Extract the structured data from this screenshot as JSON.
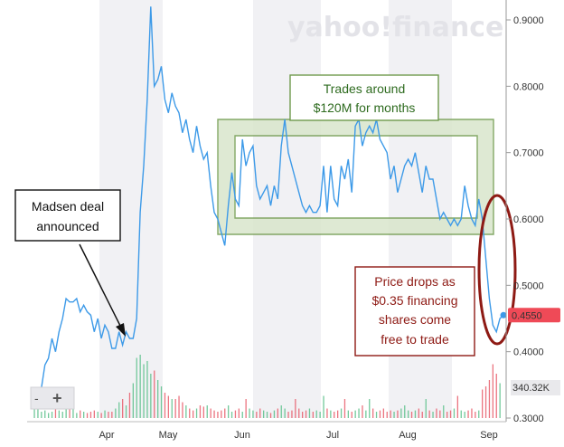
{
  "watermark": "yahoo!finance",
  "colors": {
    "line": "#3d9ae8",
    "volume_up": "#5bc08a",
    "volume_down": "#e85c6a",
    "band": "#f1f1f4",
    "green_box": "#6f9a4c",
    "green_box_fill": "#d9e6cc",
    "red_oval": "#8e1a14",
    "badge": "#ef4a57"
  },
  "chart_data": {
    "type": "line",
    "title": "",
    "xlabel": "",
    "ylabel": "",
    "x_tick_labels": [
      "Apr",
      "May",
      "Jun",
      "Jul",
      "Aug",
      "Sep"
    ],
    "y_tick_labels": [
      "0.9000",
      "0.8000",
      "0.7000",
      "0.6000",
      "0.5000",
      "0.4000",
      "0.3000"
    ],
    "ylim": [
      0.3,
      0.92
    ],
    "grid": "vertical month bands",
    "series": [
      {
        "values": [
          0.315,
          0.33,
          0.345,
          0.38,
          0.39,
          0.42,
          0.4,
          0.43,
          0.45,
          0.48,
          0.475,
          0.475,
          0.48,
          0.46,
          0.47,
          0.46,
          0.455,
          0.43,
          0.45,
          0.42,
          0.44,
          0.43,
          0.405,
          0.405,
          0.43,
          0.41,
          0.43,
          0.42,
          0.42,
          0.45,
          0.61,
          0.68,
          0.78,
          0.92,
          0.8,
          0.81,
          0.83,
          0.78,
          0.76,
          0.79,
          0.77,
          0.76,
          0.73,
          0.75,
          0.72,
          0.7,
          0.74,
          0.71,
          0.69,
          0.7,
          0.65,
          0.61,
          0.6,
          0.58,
          0.56,
          0.62,
          0.67,
          0.63,
          0.62,
          0.72,
          0.68,
          0.7,
          0.71,
          0.65,
          0.63,
          0.64,
          0.65,
          0.62,
          0.65,
          0.63,
          0.71,
          0.75,
          0.7,
          0.68,
          0.66,
          0.64,
          0.62,
          0.61,
          0.62,
          0.61,
          0.61,
          0.62,
          0.68,
          0.61,
          0.68,
          0.63,
          0.62,
          0.68,
          0.66,
          0.69,
          0.64,
          0.74,
          0.75,
          0.71,
          0.73,
          0.74,
          0.73,
          0.75,
          0.72,
          0.71,
          0.7,
          0.66,
          0.68,
          0.64,
          0.66,
          0.68,
          0.69,
          0.68,
          0.7,
          0.67,
          0.64,
          0.68,
          0.66,
          0.66,
          0.63,
          0.6,
          0.61,
          0.6,
          0.59,
          0.6,
          0.59,
          0.6,
          0.65,
          0.62,
          0.6,
          0.59,
          0.63,
          0.6,
          0.54,
          0.48,
          0.44,
          0.43,
          0.45,
          0.455
        ]
      }
    ],
    "volume_bars": [
      0.3,
      0.15,
      0.1,
      0.12,
      0.08,
      0.1,
      0.15,
      0.12,
      0.1,
      0.18,
      0.2,
      0.15,
      0.08,
      0.12,
      0.1,
      0.08,
      0.1,
      0.12,
      0.1,
      0.08,
      0.12,
      0.1,
      0.1,
      0.15,
      0.25,
      0.3,
      0.2,
      0.4,
      0.55,
      0.95,
      1.0,
      0.85,
      0.9,
      0.7,
      0.75,
      0.6,
      0.5,
      0.4,
      0.35,
      0.3,
      0.3,
      0.35,
      0.25,
      0.2,
      0.15,
      0.12,
      0.15,
      0.2,
      0.18,
      0.2,
      0.15,
      0.12,
      0.1,
      0.12,
      0.15,
      0.2,
      0.1,
      0.12,
      0.15,
      0.1,
      0.3,
      0.15,
      0.12,
      0.1,
      0.15,
      0.12,
      0.1,
      0.08,
      0.12,
      0.15,
      0.2,
      0.15,
      0.1,
      0.12,
      0.3,
      0.15,
      0.1,
      0.12,
      0.15,
      0.1,
      0.12,
      0.1,
      0.35,
      0.15,
      0.12,
      0.1,
      0.12,
      0.15,
      0.3,
      0.12,
      0.1,
      0.12,
      0.15,
      0.2,
      0.12,
      0.3,
      0.15,
      0.1,
      0.12,
      0.15,
      0.1,
      0.12,
      0.1,
      0.12,
      0.15,
      0.2,
      0.12,
      0.1,
      0.12,
      0.15,
      0.1,
      0.3,
      0.12,
      0.1,
      0.15,
      0.12,
      0.2,
      0.1,
      0.12,
      0.15,
      0.35,
      0.12,
      0.1,
      0.12,
      0.15,
      0.1,
      0.12,
      0.45,
      0.5,
      0.6,
      0.85,
      0.7,
      0.55
    ],
    "volume_label": "340.32K",
    "last_price_label": "0.4550",
    "annotations": [
      {
        "id": "madsen",
        "lines": [
          "Madsen deal",
          "announced"
        ],
        "arrow_to_index": 29
      },
      {
        "id": "trades",
        "lines": [
          "Trades around",
          "$120M for months"
        ]
      },
      {
        "id": "drop",
        "lines": [
          "Price drops as",
          "$0.35 financing",
          "shares come",
          "free to trade"
        ]
      }
    ]
  },
  "controls": {
    "minus": "-",
    "plus": "+"
  }
}
